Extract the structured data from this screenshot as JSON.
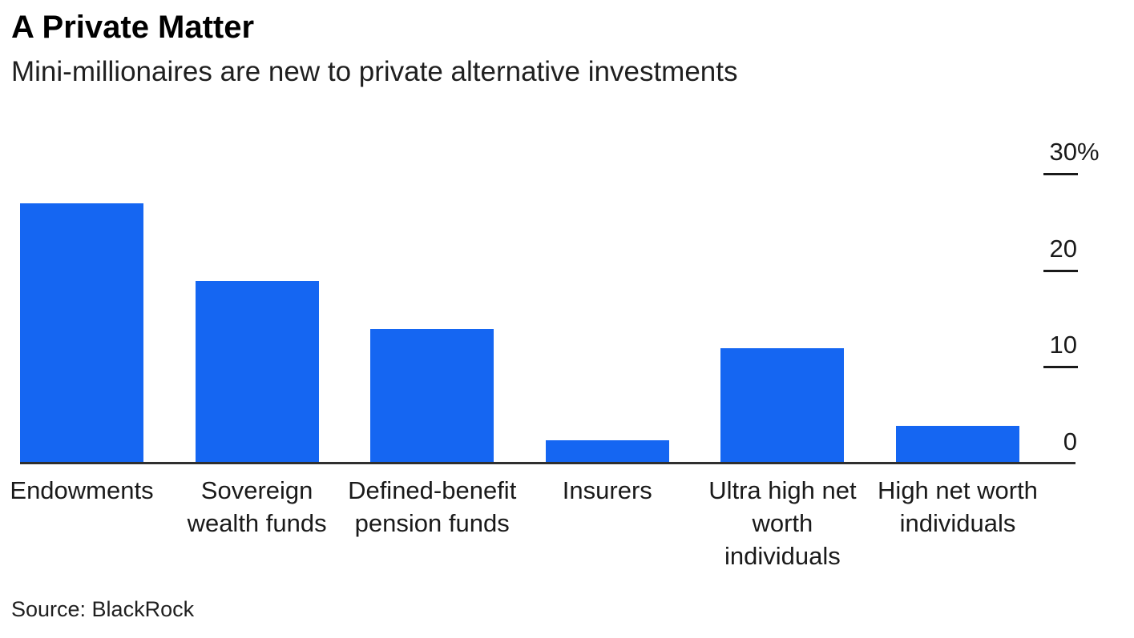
{
  "header": {
    "title": "A Private Matter",
    "subtitle": "Mini-millionaires are new to private alternative investments"
  },
  "footer": {
    "source": "Source: BlackRock"
  },
  "chart_data": {
    "type": "bar",
    "title": "A Private Matter",
    "subtitle": "Mini-millionaires are new to private alternative investments",
    "source": "Source: BlackRock",
    "xlabel": "",
    "ylabel": "",
    "unit": "%",
    "ylim": [
      0,
      30
    ],
    "grid": false,
    "legend": "none",
    "value_axis_side": "right",
    "bar_color": "#1566F2",
    "axis_color": "#2f2f2f",
    "categories": [
      "Endowments",
      "Sovereign wealth funds",
      "Defined-benefit pension funds",
      "Insurers",
      "Ultra high net worth individuals",
      "High net worth individuals"
    ],
    "values": [
      27,
      19,
      14,
      2.5,
      12,
      4
    ],
    "items": [
      {
        "id": "endowments",
        "label": "Endowments",
        "label_lines": [
          "Endowments"
        ],
        "value": 27
      },
      {
        "id": "sovereign-wealth-funds",
        "label": "Sovereign wealth funds",
        "label_lines": [
          "Sovereign",
          "wealth funds"
        ],
        "value": 19
      },
      {
        "id": "defined-benefit-pension-funds",
        "label": "Defined-benefit pension funds",
        "label_lines": [
          "Defined-benefit",
          "pension funds"
        ],
        "value": 14
      },
      {
        "id": "insurers",
        "label": "Insurers",
        "label_lines": [
          "Insurers"
        ],
        "value": 2.5
      },
      {
        "id": "ultra-high-net-worth-individuals",
        "label": "Ultra high net worth individuals",
        "label_lines": [
          "Ultra high net",
          "worth",
          "individuals"
        ],
        "value": 12
      },
      {
        "id": "high-net-worth-individuals",
        "label": "High net worth individuals",
        "label_lines": [
          "High net worth",
          "individuals"
        ],
        "value": 4
      }
    ],
    "yticks": [
      {
        "value": 30,
        "num": "30",
        "suffix": "%",
        "label": "30%"
      },
      {
        "value": 20,
        "num": "20",
        "suffix": "",
        "label": "20"
      },
      {
        "value": 10,
        "num": "10",
        "suffix": "",
        "label": "10"
      },
      {
        "value": 0,
        "num": "0",
        "suffix": "",
        "label": "0"
      }
    ]
  }
}
